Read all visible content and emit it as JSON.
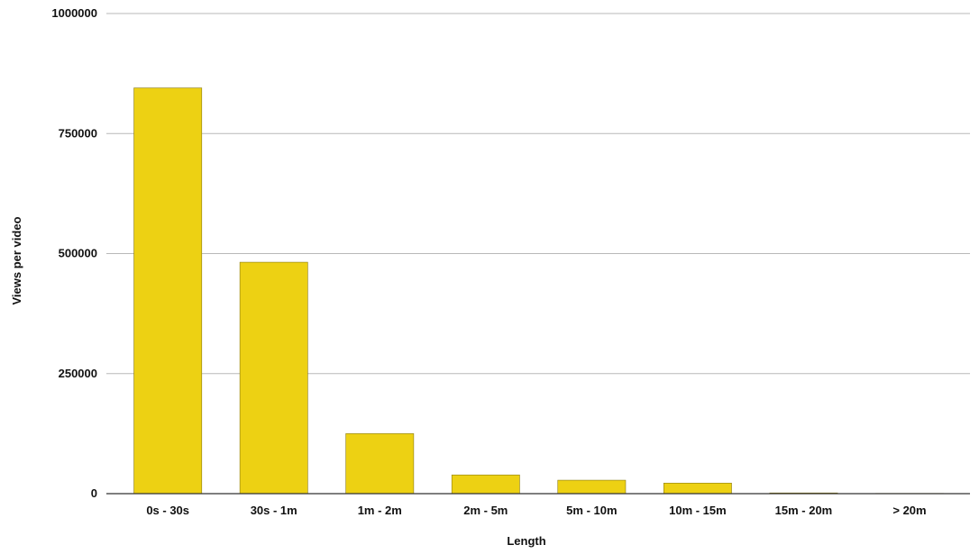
{
  "chart_data": {
    "type": "bar",
    "title": "",
    "xlabel": "Length",
    "ylabel": "Views per video",
    "categories": [
      "0s - 30s",
      "30s - 1m",
      "1m - 2m",
      "2m - 5m",
      "5m - 10m",
      "10m - 15m",
      "15m - 20m",
      "> 20m"
    ],
    "values": [
      845000,
      482000,
      125000,
      39000,
      28000,
      22000,
      1500,
      500
    ],
    "ylim": [
      0,
      1000000
    ],
    "yticks": [
      0,
      250000,
      500000,
      750000,
      1000000
    ],
    "ytick_labels": [
      "0",
      "250000",
      "500000",
      "750000",
      "1000000"
    ],
    "grid": true,
    "legend": "none",
    "colors": {
      "bar": "#EDD113",
      "bar_stroke": "#8a7a10",
      "grid": "#b8b8b8",
      "baseline": "#333333",
      "text": "#111111"
    }
  }
}
